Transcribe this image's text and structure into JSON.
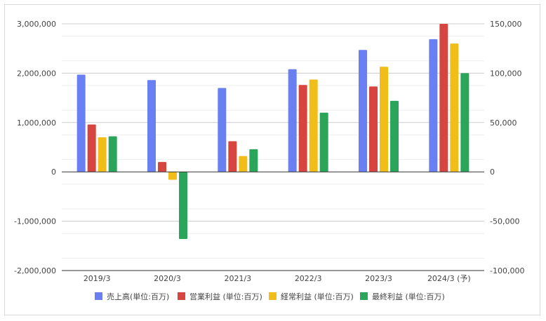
{
  "chart_data": {
    "type": "bar",
    "categories": [
      "2019/3",
      "2020/3",
      "2021/3",
      "2022/3",
      "2023/3",
      "2024/3 (予)"
    ],
    "series": [
      {
        "name": "売上高(単位:百万)",
        "axis": "left",
        "color": "#6a7ff2",
        "values": [
          1970000,
          1860000,
          1700000,
          2080000,
          2470000,
          2690000
        ]
      },
      {
        "name": "営業利益 (単位:百万)",
        "axis": "right",
        "color": "#d64540",
        "values": [
          48000,
          10000,
          31000,
          88000,
          86500,
          150000
        ]
      },
      {
        "name": "経常利益 (単位:百万)",
        "axis": "right",
        "color": "#f1bd19",
        "values": [
          35000,
          -8000,
          16000,
          93500,
          106500,
          130000
        ]
      },
      {
        "name": "最終利益 (単位:百万)",
        "axis": "right",
        "color": "#2aa55a",
        "values": [
          36000,
          -68000,
          23000,
          60000,
          72000,
          100000
        ]
      }
    ],
    "yleft": {
      "lim": [
        -2000000,
        3000000
      ],
      "ticks": [
        3000000,
        2000000,
        1000000,
        0,
        -1000000,
        -2000000
      ],
      "tick_labels": [
        "3,000,000",
        "2,000,000",
        "1,000,000",
        "0",
        "-1,000,000",
        "-2,000,000"
      ]
    },
    "yright": {
      "lim": [
        -100000,
        150000
      ],
      "ticks": [
        150000,
        100000,
        50000,
        0,
        -50000,
        -100000
      ],
      "tick_labels": [
        "150,000",
        "100,000",
        "50,000",
        "0",
        "-50,000",
        "-100,000"
      ]
    },
    "grid": true,
    "legend": "bottom"
  }
}
